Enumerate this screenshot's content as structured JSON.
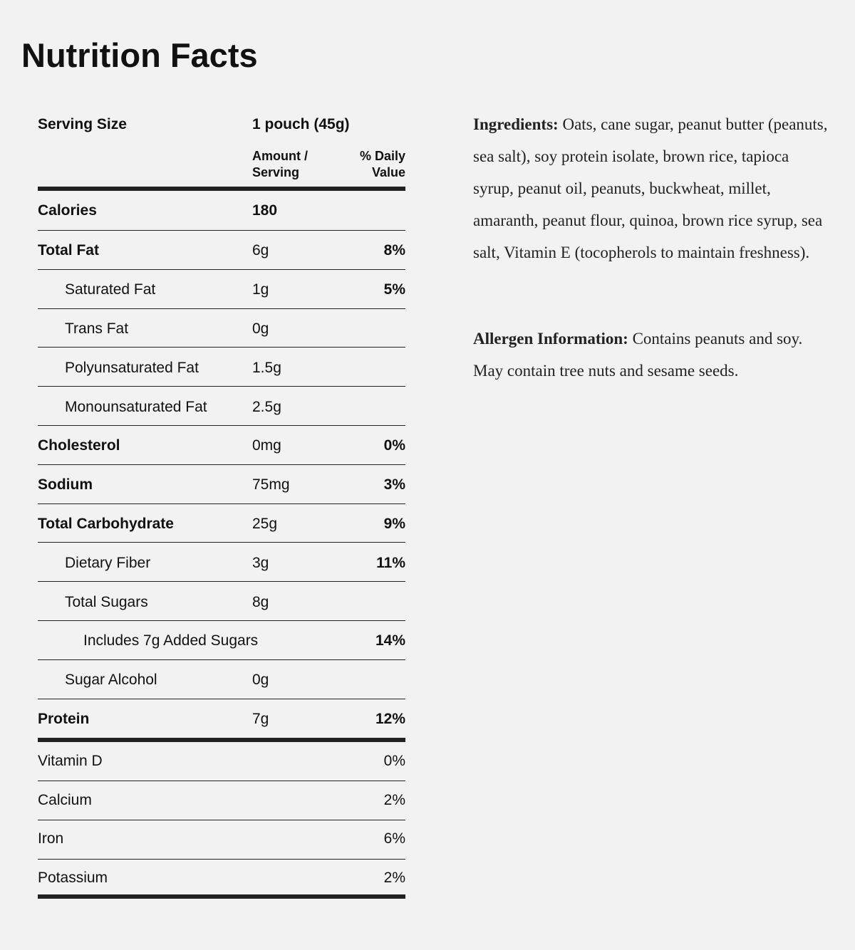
{
  "header": {
    "title": "Nutrition Facts"
  },
  "table": {
    "serving_size_label": "Serving Size",
    "serving_size": "1 pouch (45g)",
    "amount_header": "Amount / Serving",
    "daily_value_header": "% Daily Value",
    "calories": {
      "label": "Calories",
      "amount": "180"
    },
    "rows": [
      {
        "label": "Total Fat",
        "amount": "6g",
        "dv": "8%",
        "level": "main"
      },
      {
        "label": "Saturated Fat",
        "amount": "1g",
        "dv": "5%",
        "level": "sub"
      },
      {
        "label": "Trans Fat",
        "amount": "0g",
        "level": "sub"
      },
      {
        "label": "Polyunsaturated Fat",
        "amount": "1.5g",
        "level": "sub"
      },
      {
        "label": "Monounsaturated Fat",
        "amount": "2.5g",
        "level": "sub"
      },
      {
        "label": "Cholesterol",
        "amount": "0mg",
        "dv": "0%",
        "level": "main"
      },
      {
        "label": "Sodium",
        "amount": "75mg",
        "dv": "3%",
        "level": "main"
      },
      {
        "label": "Total Carbohydrate",
        "amount": "25g",
        "dv": "9%",
        "level": "main"
      },
      {
        "label": "Dietary Fiber",
        "amount": "3g",
        "dv": "11%",
        "level": "sub"
      },
      {
        "label": "Total Sugars",
        "amount": "8g",
        "level": "sub"
      },
      {
        "label": "Includes 7g Added Sugars",
        "dv": "14%",
        "level": "subsub"
      },
      {
        "label": "Sugar Alcohol",
        "amount": "0g",
        "level": "sub"
      },
      {
        "label": "Protein",
        "amount": "7g",
        "dv": "12%",
        "level": "main"
      }
    ],
    "vitamins": [
      {
        "label": "Vitamin D",
        "dv": "0%"
      },
      {
        "label": "Calcium",
        "dv": "2%"
      },
      {
        "label": "Iron",
        "dv": "6%"
      },
      {
        "label": "Potassium",
        "dv": "2%"
      }
    ]
  },
  "ingredients": {
    "label": "Ingredients:",
    "text": "Oats, cane sugar, peanut butter (peanuts, sea salt), soy protein isolate, brown rice, tapioca syrup, peanut oil, peanuts, buckwheat, millet, amaranth, peanut flour, quinoa, brown rice syrup, sea salt, Vitamin E (tocopherols to maintain freshness)."
  },
  "allergens": {
    "label": "Allergen Information:",
    "text": "Contains peanuts and soy. May contain tree nuts and sesame seeds."
  }
}
